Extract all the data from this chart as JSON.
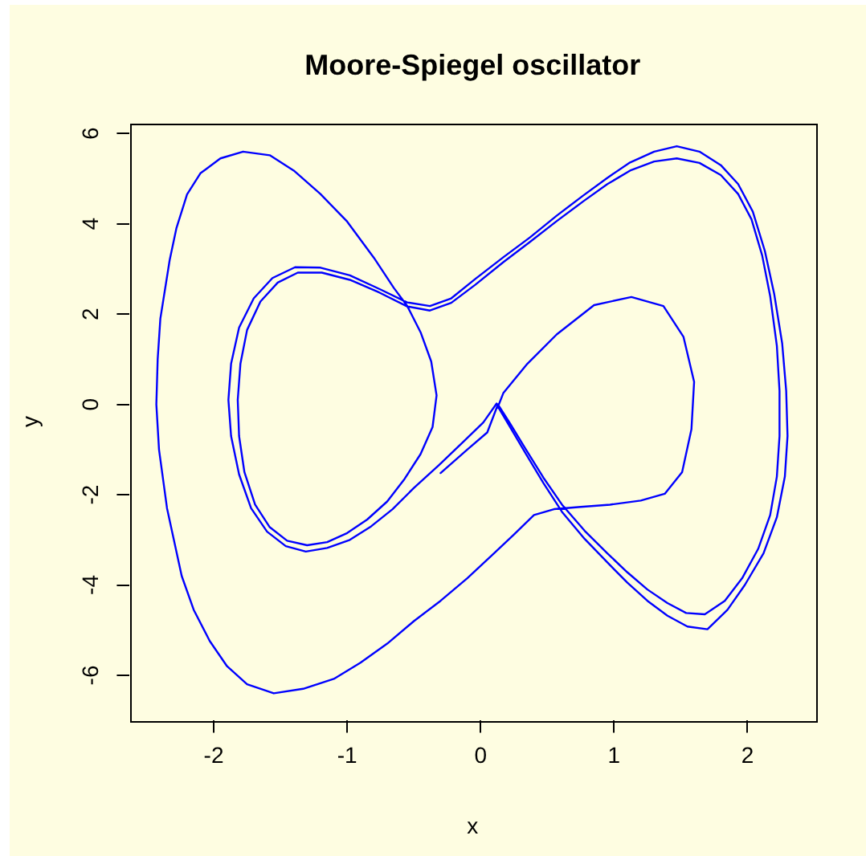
{
  "chart_data": {
    "type": "line",
    "title": "Moore-Spiegel oscillator",
    "xlabel": "x",
    "ylabel": "y",
    "series": [
      {
        "color": "#0000ff",
        "x": [
          0.12,
          0.02,
          -0.12,
          -0.31,
          -0.5,
          -0.66,
          -0.82,
          -0.98,
          -1.15,
          -1.31,
          -1.46,
          -1.6,
          -1.72,
          -1.81,
          -1.87,
          -1.89,
          -1.87,
          -1.81,
          -1.7,
          -1.56,
          -1.39,
          -1.2,
          -0.98,
          -0.76,
          -0.55,
          -0.38,
          -0.22,
          -0.04,
          0.17,
          0.37,
          0.57,
          0.77,
          0.95,
          1.12,
          1.3,
          1.47,
          1.64,
          1.8,
          1.93,
          2.04,
          2.13,
          2.2,
          2.26,
          2.29,
          2.3,
          2.28,
          2.22,
          2.12,
          1.98,
          1.85,
          1.7,
          1.55,
          1.4,
          1.25,
          1.1,
          0.95,
          0.78,
          0.61,
          0.47,
          0.34,
          0.22,
          0.13,
          0.17,
          0.35,
          0.57,
          0.85,
          1.13,
          1.37,
          1.52,
          1.6,
          1.58,
          1.51,
          1.38,
          1.2,
          0.97,
          0.75,
          0.55,
          0.4,
          0.25,
          0.1,
          -0.1,
          -0.3,
          -0.5,
          -0.7,
          -0.9,
          -1.1,
          -1.33,
          -1.55,
          -1.75,
          -1.9,
          -2.03,
          -2.15,
          -2.24,
          -2.35,
          -2.41,
          -2.43,
          -2.42,
          -2.4,
          -2.33,
          -2.28,
          -2.2,
          -2.1,
          -1.95,
          -1.78,
          -1.58,
          -1.4,
          -1.2,
          -1,
          -0.8,
          -0.65,
          -0.55,
          -0.45,
          -0.37,
          -0.33,
          -0.36,
          -0.45,
          -0.57,
          -0.7,
          -0.85,
          -1,
          -1.15,
          -1.3,
          -1.45,
          -1.58,
          -1.69,
          -1.77,
          -1.81,
          -1.82,
          -1.8,
          -1.75,
          -1.65,
          -1.52,
          -1.37,
          -1.19,
          -0.98,
          -0.76,
          -0.55,
          -0.38,
          -0.22,
          -0.04,
          0.17,
          0.37,
          0.57,
          0.77,
          0.95,
          1.12,
          1.3,
          1.47,
          1.64,
          1.8,
          1.93,
          2.03,
          2.11,
          2.17,
          2.22,
          2.24,
          2.24,
          2.22,
          2.17,
          2.08,
          1.96,
          1.83,
          1.68,
          1.54,
          1.4,
          1.25,
          1.1,
          0.95,
          0.78,
          0.61,
          0.47,
          0.34,
          0.22,
          0.13,
          0.05,
          -0.1,
          -0.3
        ],
        "values": [
          0.02,
          -0.4,
          -0.8,
          -1.34,
          -1.85,
          -2.32,
          -2.7,
          -3,
          -3.18,
          -3.26,
          -3.14,
          -2.82,
          -2.3,
          -1.55,
          -0.7,
          0.1,
          0.9,
          1.7,
          2.35,
          2.8,
          3.04,
          3.03,
          2.86,
          2.56,
          2.26,
          2.18,
          2.35,
          2.78,
          3.26,
          3.7,
          4.18,
          4.63,
          5.02,
          5.36,
          5.6,
          5.72,
          5.6,
          5.3,
          4.88,
          4.27,
          3.4,
          2.45,
          1.35,
          0.3,
          -0.7,
          -1.6,
          -2.5,
          -3.3,
          -4,
          -4.55,
          -4.98,
          -4.92,
          -4.68,
          -4.35,
          -3.95,
          -3.5,
          -2.98,
          -2.38,
          -1.74,
          -1.1,
          -0.5,
          -0.05,
          0.25,
          0.9,
          1.55,
          2.2,
          2.38,
          2.18,
          1.5,
          0.5,
          -0.55,
          -1.5,
          -1.98,
          -2.13,
          -2.22,
          -2.27,
          -2.32,
          -2.45,
          -2.88,
          -3.3,
          -3.85,
          -4.35,
          -4.8,
          -5.3,
          -5.72,
          -6.08,
          -6.3,
          -6.4,
          -6.2,
          -5.8,
          -5.24,
          -4.55,
          -3.8,
          -2.3,
          -1,
          0,
          1,
          1.9,
          3.2,
          3.9,
          4.65,
          5.12,
          5.45,
          5.6,
          5.52,
          5.18,
          4.66,
          4.05,
          3.25,
          2.58,
          2.18,
          1.6,
          0.95,
          0.2,
          -0.5,
          -1.1,
          -1.65,
          -2.15,
          -2.55,
          -2.85,
          -3.05,
          -3.12,
          -3.02,
          -2.72,
          -2.22,
          -1.5,
          -0.7,
          0.1,
          0.9,
          1.65,
          2.28,
          2.7,
          2.92,
          2.92,
          2.76,
          2.48,
          2.17,
          2.08,
          2.25,
          2.65,
          3.15,
          3.6,
          4.06,
          4.5,
          4.88,
          5.18,
          5.38,
          5.45,
          5.35,
          5.08,
          4.66,
          4.1,
          3.3,
          2.4,
          1.3,
          0.3,
          -0.7,
          -1.6,
          -2.45,
          -3.2,
          -3.85,
          -4.35,
          -4.65,
          -4.62,
          -4.4,
          -4.1,
          -3.72,
          -3.3,
          -2.8,
          -2.22,
          -1.62,
          -1,
          -0.42,
          0,
          -0.62,
          -1,
          -1.52
        ]
      }
    ],
    "xlim": [
      -2.63,
      2.51
    ],
    "ylim": [
      -6.99,
      6.23
    ],
    "xticks": [
      -2,
      -1,
      0,
      1,
      2
    ],
    "yticks": [
      -6,
      -4,
      -2,
      0,
      2,
      4,
      6
    ],
    "grid": false,
    "legend": false
  }
}
